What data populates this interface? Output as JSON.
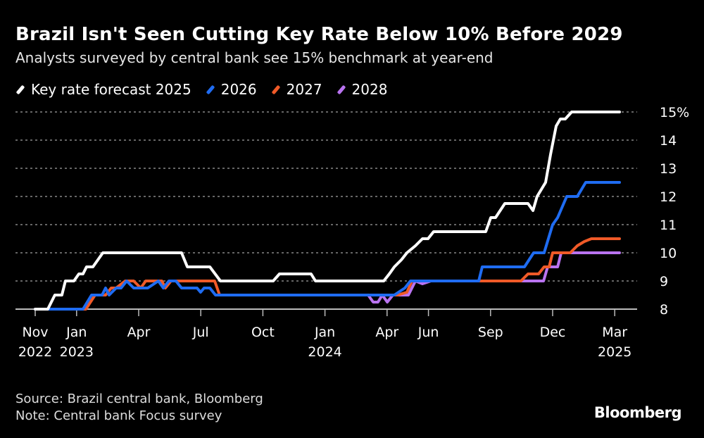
{
  "title": "Brazil Isn't Seen Cutting Key Rate Below 10% Before 2029",
  "subtitle": "Analysts surveyed by central bank see 15% benchmark at year-end",
  "source": "Source: Brazil central bank, Bloomberg",
  "note": "Note: Central bank Focus survey",
  "logo": "Bloomberg",
  "chart_data": {
    "type": "line",
    "title": "Brazil Isn't Seen Cutting Key Rate Below 10% Before 2029",
    "x_unit": "months since Nov 2022",
    "ylim": [
      8,
      15
    ],
    "xlim": [
      0,
      28
    ],
    "y_ticks": [
      {
        "v": 8,
        "label": "8"
      },
      {
        "v": 9,
        "label": "9"
      },
      {
        "v": 10,
        "label": "10"
      },
      {
        "v": 11,
        "label": "11"
      },
      {
        "v": 12,
        "label": "12"
      },
      {
        "v": 13,
        "label": "13"
      },
      {
        "v": 14,
        "label": "14"
      },
      {
        "v": 15,
        "label": "15%"
      }
    ],
    "x_ticks": [
      {
        "m": 0,
        "l1": "Nov",
        "l2": "2022"
      },
      {
        "m": 2,
        "l1": "Jan",
        "l2": "2023"
      },
      {
        "m": 5,
        "l1": "Apr",
        "l2": ""
      },
      {
        "m": 8,
        "l1": "Jul",
        "l2": ""
      },
      {
        "m": 11,
        "l1": "Oct",
        "l2": ""
      },
      {
        "m": 14,
        "l1": "Jan",
        "l2": "2024"
      },
      {
        "m": 17,
        "l1": "Apr",
        "l2": ""
      },
      {
        "m": 19,
        "l1": "Jun",
        "l2": ""
      },
      {
        "m": 22,
        "l1": "Sep",
        "l2": ""
      },
      {
        "m": 25,
        "l1": "Dec",
        "l2": ""
      },
      {
        "m": 28,
        "l1": "Mar",
        "l2": "2025"
      }
    ],
    "series": [
      {
        "name": "Key rate forecast 2025",
        "color": "#ffffff",
        "points": [
          [
            0,
            8
          ],
          [
            0.61,
            8
          ],
          [
            0.95,
            8.5
          ],
          [
            1.29,
            8.5
          ],
          [
            1.46,
            9
          ],
          [
            1.87,
            9
          ],
          [
            2.11,
            9.25
          ],
          [
            2.31,
            9.25
          ],
          [
            2.48,
            9.5
          ],
          [
            2.79,
            9.5
          ],
          [
            3.27,
            10
          ],
          [
            7.07,
            10
          ],
          [
            7.35,
            9.5
          ],
          [
            8.44,
            9.5
          ],
          [
            8.95,
            9
          ],
          [
            11.5,
            9
          ],
          [
            11.8,
            9.25
          ],
          [
            13.33,
            9.25
          ],
          [
            13.54,
            9
          ],
          [
            16.84,
            9
          ],
          [
            17.11,
            9.25
          ],
          [
            17.35,
            9.5
          ],
          [
            17.69,
            9.75
          ],
          [
            17.96,
            10
          ],
          [
            18.37,
            10.25
          ],
          [
            18.71,
            10.5
          ],
          [
            18.98,
            10.5
          ],
          [
            19.25,
            10.75
          ],
          [
            21.77,
            10.75
          ],
          [
            22.01,
            11.25
          ],
          [
            22.24,
            11.25
          ],
          [
            22.69,
            11.75
          ],
          [
            23.81,
            11.75
          ],
          [
            24.05,
            11.5
          ],
          [
            24.25,
            12
          ],
          [
            24.66,
            12.5
          ],
          [
            24.9,
            13.5
          ],
          [
            25.17,
            14.5
          ],
          [
            25.37,
            14.75
          ],
          [
            25.61,
            14.75
          ],
          [
            25.92,
            15
          ],
          [
            28.23,
            15
          ]
        ]
      },
      {
        "name": "2026",
        "color": "#1f6cf2",
        "points": [
          [
            0,
            8
          ],
          [
            2.31,
            8
          ],
          [
            2.72,
            8.5
          ],
          [
            3.23,
            8.5
          ],
          [
            3.4,
            8.75
          ],
          [
            3.57,
            8.5
          ],
          [
            3.91,
            8.75
          ],
          [
            4.15,
            8.75
          ],
          [
            4.42,
            9
          ],
          [
            4.76,
            8.75
          ],
          [
            5.44,
            8.75
          ],
          [
            5.95,
            9
          ],
          [
            6.19,
            8.75
          ],
          [
            6.46,
            9
          ],
          [
            6.8,
            9
          ],
          [
            7.07,
            8.75
          ],
          [
            7.82,
            8.75
          ],
          [
            7.99,
            8.6
          ],
          [
            8.16,
            8.75
          ],
          [
            8.44,
            8.75
          ],
          [
            8.71,
            8.5
          ],
          [
            17.35,
            8.5
          ],
          [
            17.86,
            8.75
          ],
          [
            18.13,
            9
          ],
          [
            21.43,
            9
          ],
          [
            21.6,
            9.5
          ],
          [
            23.64,
            9.5
          ],
          [
            24.08,
            10
          ],
          [
            24.59,
            10
          ],
          [
            25,
            11
          ],
          [
            25.24,
            11.25
          ],
          [
            25.68,
            12
          ],
          [
            26.19,
            12
          ],
          [
            26.6,
            12.5
          ],
          [
            28.23,
            12.5
          ]
        ]
      },
      {
        "name": "2027",
        "color": "#f05a28",
        "points": [
          [
            0,
            8
          ],
          [
            2.45,
            8
          ],
          [
            2.89,
            8.5
          ],
          [
            3.4,
            8.5
          ],
          [
            3.67,
            8.75
          ],
          [
            3.91,
            8.75
          ],
          [
            4.35,
            9
          ],
          [
            4.76,
            9
          ],
          [
            5.1,
            8.75
          ],
          [
            5.34,
            9
          ],
          [
            6.12,
            9
          ],
          [
            6.29,
            8.75
          ],
          [
            6.56,
            9
          ],
          [
            8.67,
            9
          ],
          [
            8.91,
            8.5
          ],
          [
            17.52,
            8.5
          ],
          [
            17.96,
            8.6
          ],
          [
            18.2,
            9
          ],
          [
            23.47,
            9
          ],
          [
            23.81,
            9.25
          ],
          [
            24.32,
            9.25
          ],
          [
            24.59,
            9.5
          ],
          [
            24.83,
            9.5
          ],
          [
            25,
            10
          ],
          [
            25.85,
            10
          ],
          [
            26.19,
            10.25
          ],
          [
            26.53,
            10.4
          ],
          [
            26.87,
            10.5
          ],
          [
            28.23,
            10.5
          ]
        ]
      },
      {
        "name": "2028",
        "color": "#b973f0",
        "points": [
          [
            16.09,
            8.5
          ],
          [
            16.33,
            8.25
          ],
          [
            16.56,
            8.25
          ],
          [
            16.77,
            8.5
          ],
          [
            17.01,
            8.25
          ],
          [
            17.28,
            8.5
          ],
          [
            18.03,
            8.5
          ],
          [
            18.37,
            9
          ],
          [
            18.71,
            8.9
          ],
          [
            19.12,
            9
          ],
          [
            23.64,
            9
          ],
          [
            24.56,
            9
          ],
          [
            24.76,
            9.5
          ],
          [
            25.24,
            9.5
          ],
          [
            25.41,
            10
          ],
          [
            28.23,
            10
          ]
        ]
      }
    ]
  }
}
